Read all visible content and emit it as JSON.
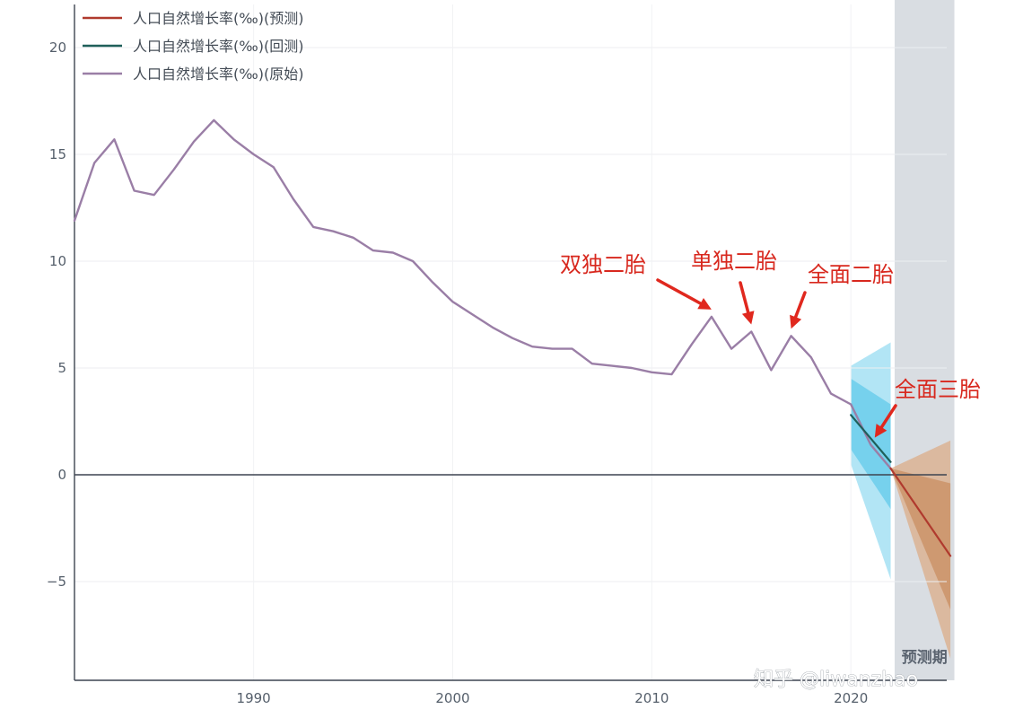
{
  "chart_data": {
    "type": "line",
    "xlim": [
      1981,
      2024
    ],
    "ylim": [
      -9.5,
      22
    ],
    "x_ticks": [
      1990,
      2000,
      2010,
      2020
    ],
    "y_ticks": [
      20,
      15,
      10,
      5,
      0,
      -5
    ],
    "y_tick_labels": [
      "20",
      "15",
      "10",
      "5",
      "0",
      "−5"
    ],
    "grid": true,
    "legend_position": "top-left",
    "series": [
      {
        "name": "人口自然增长率(‰)(预测)",
        "color": "#b03a2e",
        "x": [
          2022,
          2025
        ],
        "y": [
          0.3,
          -3.8
        ]
      },
      {
        "name": "人口自然增长率(‰)(回测)",
        "color": "#1f5f5a",
        "x": [
          2020,
          2022
        ],
        "y": [
          2.8,
          0.6
        ]
      },
      {
        "name": "人口自然增长率(‰)(原始)",
        "color": "#9a7ea6",
        "x": [
          1981,
          1982,
          1983,
          1984,
          1985,
          1986,
          1987,
          1988,
          1989,
          1990,
          1991,
          1992,
          1993,
          1994,
          1995,
          1996,
          1997,
          1998,
          1999,
          2000,
          2001,
          2002,
          2003,
          2004,
          2005,
          2006,
          2007,
          2008,
          2009,
          2010,
          2011,
          2012,
          2013,
          2014,
          2015,
          2016,
          2017,
          2018,
          2019,
          2020,
          2021,
          2022
        ],
        "y": [
          11.9,
          14.6,
          15.7,
          13.3,
          13.1,
          14.3,
          15.6,
          16.6,
          15.7,
          15.0,
          14.4,
          12.9,
          11.6,
          11.4,
          11.1,
          10.5,
          10.4,
          10.0,
          9.0,
          8.1,
          7.5,
          6.9,
          6.4,
          6.0,
          5.9,
          5.9,
          5.2,
          5.1,
          5.0,
          4.8,
          4.7,
          6.1,
          7.4,
          5.9,
          6.7,
          4.9,
          6.5,
          5.5,
          3.8,
          3.3,
          1.4,
          0.3
        ]
      }
    ],
    "forecast_period": {
      "label": "预测期",
      "x_range": [
        2022.2,
        2025.2
      ]
    },
    "backtest_bands": [
      {
        "x": [
          2020,
          2022
        ],
        "upper": [
          5.1,
          6.2
        ],
        "lower": [
          0.5,
          -4.9
        ],
        "color": "#7fd3ee"
      },
      {
        "x": [
          2020,
          2022
        ],
        "upper": [
          4.5,
          3.3
        ],
        "lower": [
          1.2,
          -1.6
        ],
        "color": "#4fc3e8"
      }
    ],
    "forecast_bands": [
      {
        "x": [
          2022,
          2025
        ],
        "upper": [
          0.3,
          1.6
        ],
        "lower": [
          0.3,
          -8.6
        ],
        "color": "#dba983"
      },
      {
        "x": [
          2022,
          2025
        ],
        "upper": [
          0.3,
          -0.4
        ],
        "lower": [
          0.3,
          -6.3
        ],
        "color": "#c98b5e"
      }
    ],
    "annotations": [
      {
        "text": "双独二胎",
        "arrow_to": [
          2013,
          7.4
        ]
      },
      {
        "text": "单独二胎",
        "arrow_to": [
          2015,
          6.7
        ]
      },
      {
        "text": "全面二胎",
        "arrow_to": [
          2017,
          6.5
        ]
      },
      {
        "text": "全面三胎",
        "arrow_to": [
          2021.2,
          1.4
        ]
      }
    ]
  },
  "watermark": "知乎 @liwanzhao"
}
